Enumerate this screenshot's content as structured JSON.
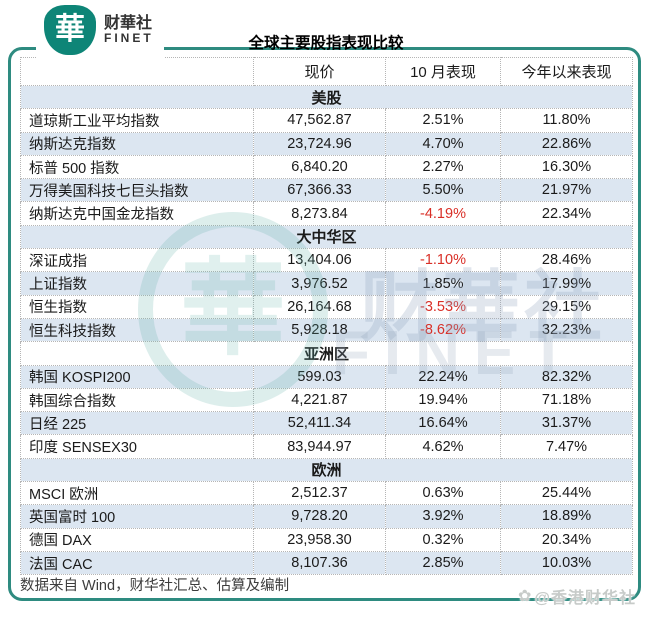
{
  "brand": {
    "cn": "财華社",
    "en": "FINET",
    "mark_glyph": "華",
    "color": "#0e8577"
  },
  "title": "全球主要股指表现比较",
  "colors": {
    "section_band": "#dce6f1",
    "negative_text": "#d92f27",
    "frame_teal": "#2e8b80"
  },
  "table": {
    "headers": [
      "",
      "现价",
      "10 月表现",
      "今年以来表现"
    ],
    "sections": [
      {
        "label": "美股",
        "rows": [
          {
            "name": "道琼斯工业平均指数",
            "price": "47,562.87",
            "oct": "2.51%",
            "ytd": "11.80%"
          },
          {
            "name": "纳斯达克指数",
            "price": "23,724.96",
            "oct": "4.70%",
            "ytd": "22.86%"
          },
          {
            "name": "标普 500 指数",
            "price": "6,840.20",
            "oct": "2.27%",
            "ytd": "16.30%"
          },
          {
            "name": "万得美国科技七巨头指数",
            "price": "67,366.33",
            "oct": "5.50%",
            "ytd": "21.97%"
          },
          {
            "name": "纳斯达克中国金龙指数",
            "price": "8,273.84",
            "oct": "-4.19%",
            "ytd": "22.34%"
          }
        ]
      },
      {
        "label": "大中华区",
        "rows": [
          {
            "name": "深证成指",
            "price": "13,404.06",
            "oct": "-1.10%",
            "ytd": "28.46%"
          },
          {
            "name": "上证指数",
            "price": "3,976.52",
            "oct": "1.85%",
            "ytd": "17.99%"
          },
          {
            "name": "恒生指数",
            "price": "26,164.68",
            "oct": "-3.53%",
            "ytd": "29.15%"
          },
          {
            "name": "恒生科技指数",
            "price": "5,928.18",
            "oct": "-8.62%",
            "ytd": "32.23%"
          }
        ]
      },
      {
        "label": "亚洲区",
        "rows": [
          {
            "name": "韩国 KOSPI200",
            "price": "599.03",
            "oct": "22.24%",
            "ytd": "82.32%"
          },
          {
            "name": "韩国综合指数",
            "price": "4,221.87",
            "oct": "19.94%",
            "ytd": "71.18%"
          },
          {
            "name": "日经 225",
            "price": "52,411.34",
            "oct": "16.64%",
            "ytd": "31.37%"
          },
          {
            "name": "印度 SENSEX30",
            "price": "83,944.97",
            "oct": "4.62%",
            "ytd": "7.47%"
          }
        ]
      },
      {
        "label": "欧洲",
        "rows": [
          {
            "name": "MSCI 欧洲",
            "price": "2,512.37",
            "oct": "0.63%",
            "ytd": "25.44%"
          },
          {
            "name": "英国富时 100",
            "price": "9,728.20",
            "oct": "3.92%",
            "ytd": "18.89%"
          },
          {
            "name": "德国 DAX",
            "price": "23,958.30",
            "oct": "0.32%",
            "ytd": "20.34%"
          },
          {
            "name": "法国 CAC",
            "price": "8,107.36",
            "oct": "2.85%",
            "ytd": "10.03%"
          }
        ]
      }
    ]
  },
  "footer": {
    "source": "数据来自 Wind，财华社汇总、估算及编制"
  },
  "watermark": {
    "ring_glyph": "華",
    "center_cn": "财華社",
    "center_en": "FINET",
    "credit_icon": "✿",
    "credit_text": "@香港财华社"
  }
}
